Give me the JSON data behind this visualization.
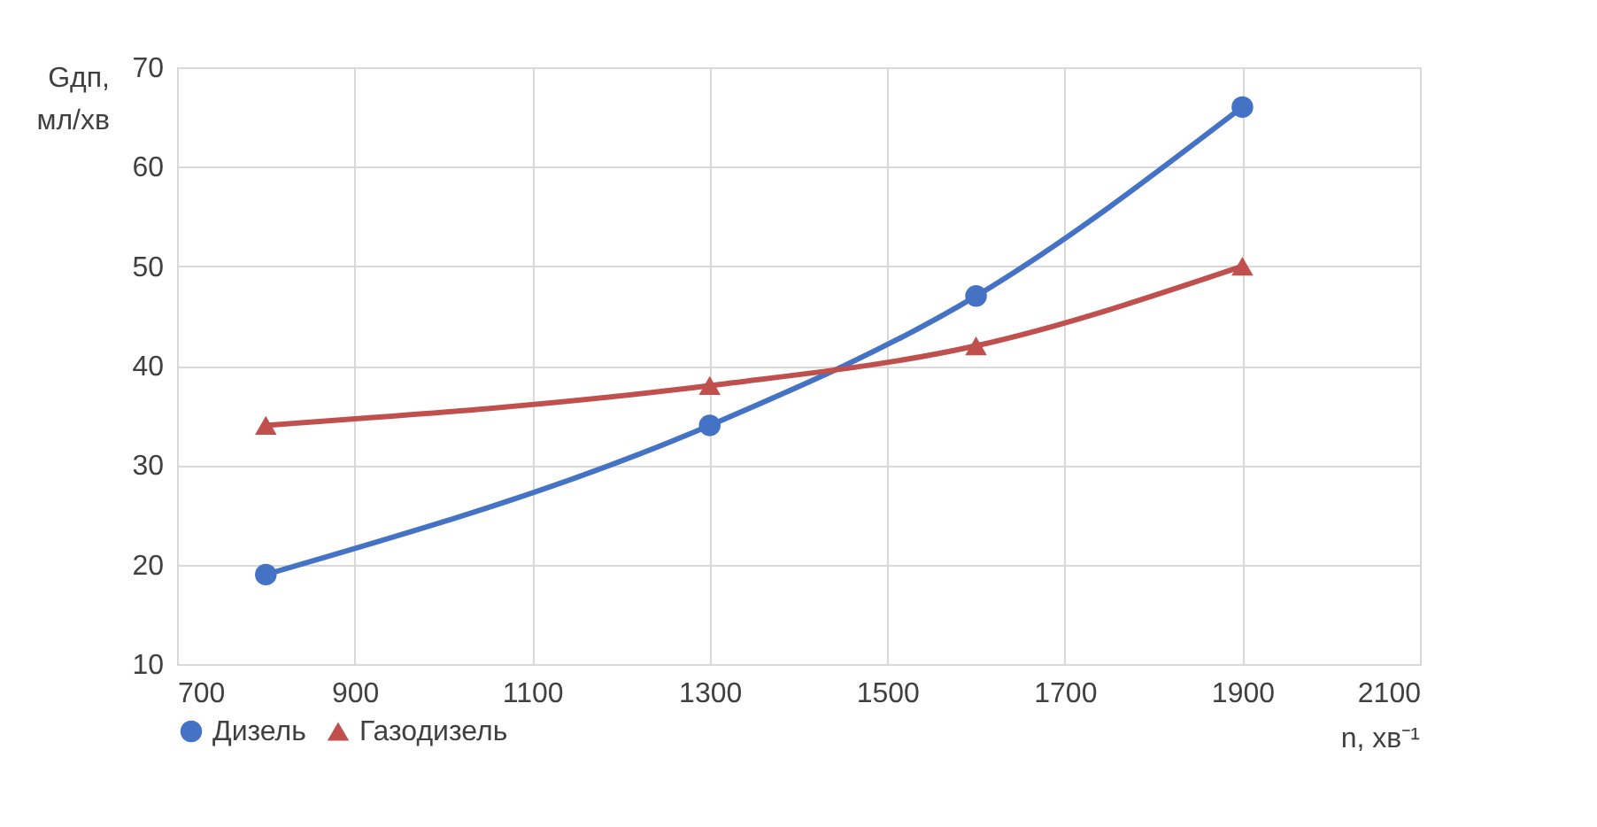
{
  "chart_data": {
    "type": "line",
    "xlabel": "n, хв⁻¹",
    "ylabel": "Gдп, мл/хв",
    "x": [
      800,
      1300,
      1600,
      1900
    ],
    "series": [
      {
        "name": "Дизель",
        "color": "#4472c4",
        "marker": "circle",
        "values": [
          19,
          34,
          47,
          66
        ]
      },
      {
        "name": "Газодизель",
        "color": "#c0504d",
        "marker": "triangle",
        "values": [
          34,
          38,
          42,
          50
        ]
      }
    ],
    "xlim": [
      700,
      2100
    ],
    "xticks": [
      700,
      900,
      1100,
      1300,
      1500,
      1700,
      1900,
      2100
    ],
    "ylim": [
      10,
      70
    ],
    "yticks": [
      10,
      20,
      30,
      40,
      50,
      60,
      70
    ],
    "grid": true,
    "legend": "bottom",
    "line_style": "solid"
  }
}
